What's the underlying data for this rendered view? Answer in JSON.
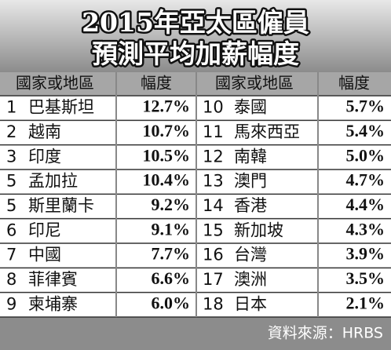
{
  "header": {
    "title_lines": [
      "2015年亞太區僱員",
      "預測平均加薪幅度"
    ]
  },
  "table": {
    "columns": [
      "國家或地區",
      "幅度",
      "國家或地區",
      "幅度"
    ],
    "left_rows": [
      [
        "1",
        "巴基斯坦",
        "12.7%"
      ],
      [
        "2",
        "越南",
        "10.7%"
      ],
      [
        "3",
        "印度",
        "10.5%"
      ],
      [
        "5",
        "孟加拉",
        "10.4%"
      ],
      [
        "5",
        "斯里蘭卡",
        "9.2%"
      ],
      [
        "6",
        "印尼",
        "9.1%"
      ],
      [
        "7",
        "中國",
        "7.7%"
      ],
      [
        "8",
        "菲律賓",
        "6.6%"
      ],
      [
        "9",
        "柬埔寨",
        "6.0%"
      ]
    ],
    "right_rows": [
      [
        "10",
        "泰國",
        "5.7%"
      ],
      [
        "11",
        "馬來西亞",
        "5.4%"
      ],
      [
        "12",
        "南韓",
        "5.0%"
      ],
      [
        "13",
        "澳門",
        "4.7%"
      ],
      [
        "14",
        "香港",
        "4.4%"
      ],
      [
        "15",
        "新加坡",
        "4.3%"
      ],
      [
        "16",
        "台灣",
        "3.9%"
      ],
      [
        "17",
        "澳洲",
        "3.5%"
      ],
      [
        "18",
        "日本",
        "2.1%"
      ]
    ]
  },
  "footer": {
    "source": "資料來源：HRBS"
  }
}
